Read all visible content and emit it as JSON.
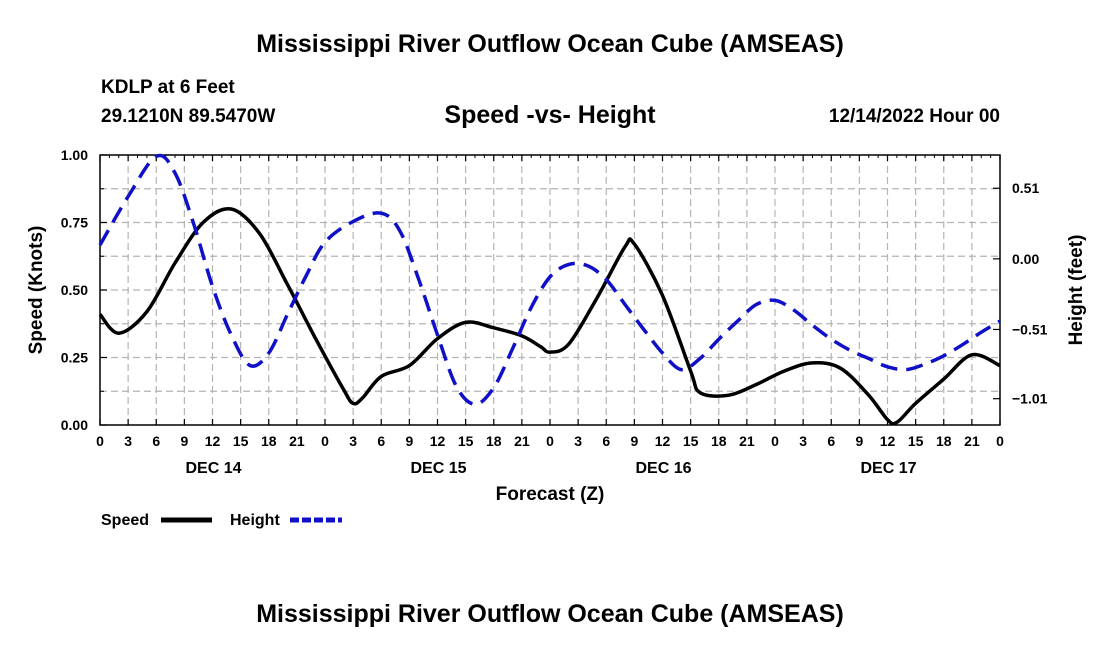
{
  "header": {
    "title": "Mississippi River Outflow Ocean Cube (AMSEAS)",
    "station": "KDLP at 6 Feet",
    "location": "29.1210N  89.5470W",
    "datetime": "12/14/2022 Hour 00"
  },
  "footer": {
    "title": "Mississippi River Outflow Ocean Cube (AMSEAS)"
  },
  "colors": {
    "speed": "#000000",
    "height": "#1010c8",
    "grid": "#b4b4b4"
  },
  "chart_data": {
    "type": "line",
    "title": "Speed -vs- Height",
    "xlabel": "Forecast (Z)",
    "ylabel": "Speed (Knots)",
    "y2label": "Height (feet)",
    "xlim": [
      0,
      96
    ],
    "ylim": [
      0,
      1.0
    ],
    "y2lim": [
      -1.2,
      0.75
    ],
    "x_ticks": [
      0,
      3,
      6,
      9,
      12,
      15,
      18,
      21,
      24,
      27,
      30,
      33,
      36,
      39,
      42,
      45,
      48,
      51,
      54,
      57,
      60,
      63,
      66,
      69,
      72,
      75,
      78,
      81,
      84,
      87,
      90,
      93,
      96
    ],
    "x_tick_labels": [
      "0",
      "3",
      "6",
      "9",
      "12",
      "15",
      "18",
      "21",
      "0",
      "3",
      "6",
      "9",
      "12",
      "15",
      "18",
      "21",
      "0",
      "3",
      "6",
      "9",
      "12",
      "15",
      "18",
      "21",
      "0",
      "3",
      "6",
      "9",
      "12",
      "15",
      "18",
      "21",
      "0"
    ],
    "day_labels": [
      {
        "x": 12,
        "label": "DEC 14"
      },
      {
        "x": 36,
        "label": "DEC 15"
      },
      {
        "x": 60,
        "label": "DEC 16"
      },
      {
        "x": 84,
        "label": "DEC 17"
      }
    ],
    "y_ticks": [
      0,
      0.25,
      0.5,
      0.75,
      1.0
    ],
    "y_tick_labels": [
      "0.00",
      "0.25",
      "0.50",
      "0.75",
      "1.00"
    ],
    "y2_ticks": [
      0.51,
      0.0,
      -0.51,
      -1.01
    ],
    "y2_tick_labels": [
      "0.51",
      "0.00",
      "−0.51",
      "−1.01"
    ],
    "legend": {
      "position": "bottom-left",
      "entries": [
        "Speed",
        "Height"
      ]
    },
    "series": [
      {
        "name": "Speed",
        "axis": "left",
        "style": "solid",
        "x": [
          0,
          2,
          5,
          8,
          11,
          14,
          17,
          20,
          23,
          26,
          27,
          28,
          30,
          33,
          36,
          39,
          42,
          45,
          47,
          48,
          50,
          53,
          56,
          57,
          60,
          63,
          64,
          67,
          70,
          73,
          76,
          79,
          82,
          84,
          85,
          87,
          90,
          93,
          96
        ],
        "values": [
          0.41,
          0.34,
          0.42,
          0.6,
          0.75,
          0.8,
          0.71,
          0.52,
          0.32,
          0.13,
          0.08,
          0.1,
          0.18,
          0.22,
          0.32,
          0.38,
          0.36,
          0.33,
          0.29,
          0.27,
          0.3,
          0.47,
          0.66,
          0.67,
          0.48,
          0.2,
          0.12,
          0.11,
          0.15,
          0.2,
          0.23,
          0.21,
          0.11,
          0.02,
          0.01,
          0.08,
          0.17,
          0.26,
          0.22
        ]
      },
      {
        "name": "Height",
        "axis": "right",
        "style": "dashed",
        "x": [
          0,
          3,
          6,
          8,
          10,
          12,
          14,
          16,
          18,
          20,
          22,
          24,
          27,
          30,
          32,
          34,
          36,
          38,
          40,
          42,
          44,
          46,
          48,
          50,
          52,
          54,
          56,
          58,
          60,
          62,
          64,
          66,
          68,
          70,
          72,
          74,
          76,
          78,
          80,
          82,
          84,
          86,
          88,
          90,
          92,
          94,
          96
        ],
        "values": [
          0.1,
          0.45,
          0.74,
          0.62,
          0.25,
          -0.2,
          -0.55,
          -0.77,
          -0.68,
          -0.4,
          -0.12,
          0.12,
          0.27,
          0.33,
          0.2,
          -0.15,
          -0.55,
          -0.92,
          -1.05,
          -0.93,
          -0.65,
          -0.35,
          -0.13,
          -0.04,
          -0.05,
          -0.15,
          -0.33,
          -0.51,
          -0.68,
          -0.8,
          -0.72,
          -0.58,
          -0.45,
          -0.33,
          -0.3,
          -0.37,
          -0.48,
          -0.58,
          -0.66,
          -0.72,
          -0.78,
          -0.8,
          -0.76,
          -0.7,
          -0.62,
          -0.53,
          -0.45
        ]
      }
    ]
  }
}
